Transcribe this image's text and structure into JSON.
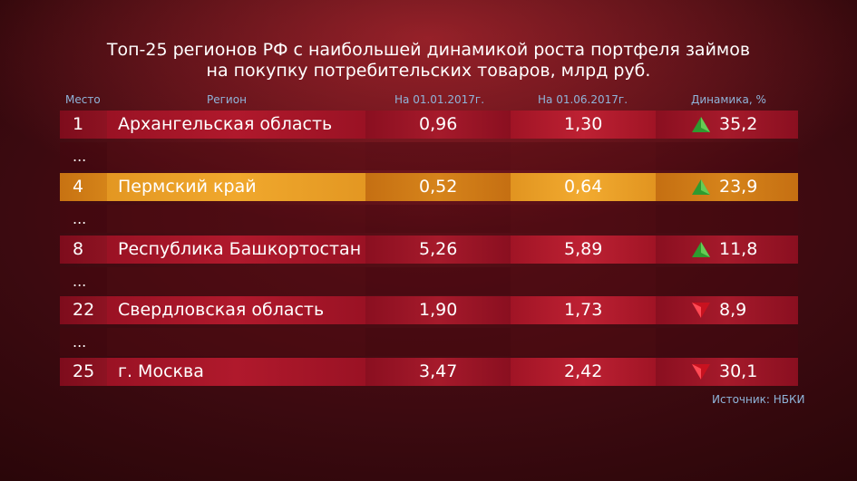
{
  "title": {
    "line1": "Топ-25 регионов РФ с наибольшей динамикой роста портфеля займов",
    "line2": "на покупку потребительских товаров, млрд руб."
  },
  "header": {
    "place": "Место",
    "region": "Регион",
    "date1": "На 01.01.2017г.",
    "date2": "На 01.06.2017г.",
    "dynamics": "Динамика, %"
  },
  "rows": [
    {
      "place": "1",
      "region": "Архангельская область",
      "v1": "0,96",
      "v2": "1,30",
      "trend": "up-arrow-icon",
      "dynamics": "35,2"
    },
    {
      "place": "4",
      "region": "Пермский край",
      "v1": "0,52",
      "v2": "0,64",
      "trend": "up-arrow-icon",
      "dynamics": "23,9"
    },
    {
      "place": "8",
      "region": "Республика Башкортостан",
      "v1": "5,26",
      "v2": "5,89",
      "trend": "up-arrow-icon",
      "dynamics": "11,8"
    },
    {
      "place": "22",
      "region": "Свердловская область",
      "v1": "1,90",
      "v2": "1,73",
      "trend": "down-arrow-icon",
      "dynamics": "8,9"
    },
    {
      "place": "25",
      "region": "г. Москва",
      "v1": "3,47",
      "v2": "2,42",
      "trend": "down-arrow-icon",
      "dynamics": "30,1"
    }
  ],
  "ellipsis": "...",
  "source": "Источник: НБКИ",
  "colors": {
    "row_red": "#a61a2b",
    "row_highlight": "#e39722",
    "up_arrow": "#3fae3a",
    "down_arrow": "#e0202f",
    "header_text": "#8fb4d9"
  }
}
